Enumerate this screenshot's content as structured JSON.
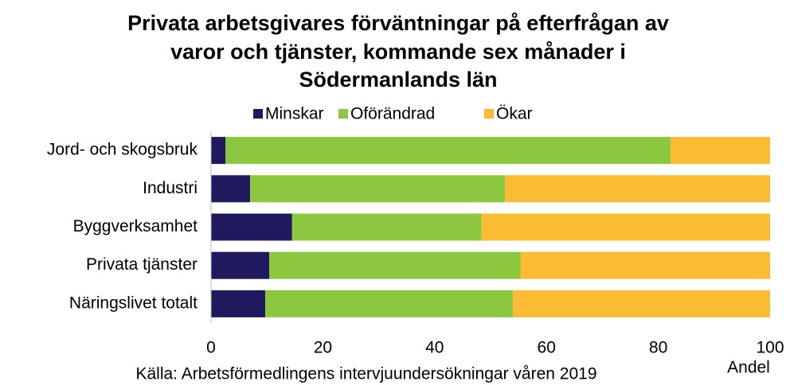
{
  "chart_data": {
    "type": "stacked_barh",
    "title": [
      "Privata arbetsgivares förväntningar på efterfrågan av",
      "varor och tjänster, kommande sex månader i",
      "Södermanlands län"
    ],
    "categories": [
      "Jord- och skogsbruk",
      "Industri",
      "Byggverksamhet",
      "Privata tjänster",
      "Näringslivet totalt"
    ],
    "series": [
      {
        "name": "Minskar",
        "color": "#1f1a5e",
        "values": [
          2.6,
          7.0,
          14.5,
          10.4,
          9.7
        ]
      },
      {
        "name": "Oförändrad",
        "color": "#8dc63f",
        "values": [
          79.6,
          45.6,
          33.9,
          45.0,
          44.3
        ]
      },
      {
        "name": "Ökar",
        "color": "#fbbb33",
        "values": [
          17.8,
          47.4,
          51.6,
          44.6,
          46.0
        ]
      }
    ],
    "xlim": [
      0,
      100
    ],
    "xticks": [
      0,
      20,
      40,
      60,
      80,
      100
    ],
    "xlabel": "Andel",
    "source": "Källa: Arbetsförmedlingens intervjuundersökningar våren 2019",
    "legend": "top",
    "grid": false
  }
}
